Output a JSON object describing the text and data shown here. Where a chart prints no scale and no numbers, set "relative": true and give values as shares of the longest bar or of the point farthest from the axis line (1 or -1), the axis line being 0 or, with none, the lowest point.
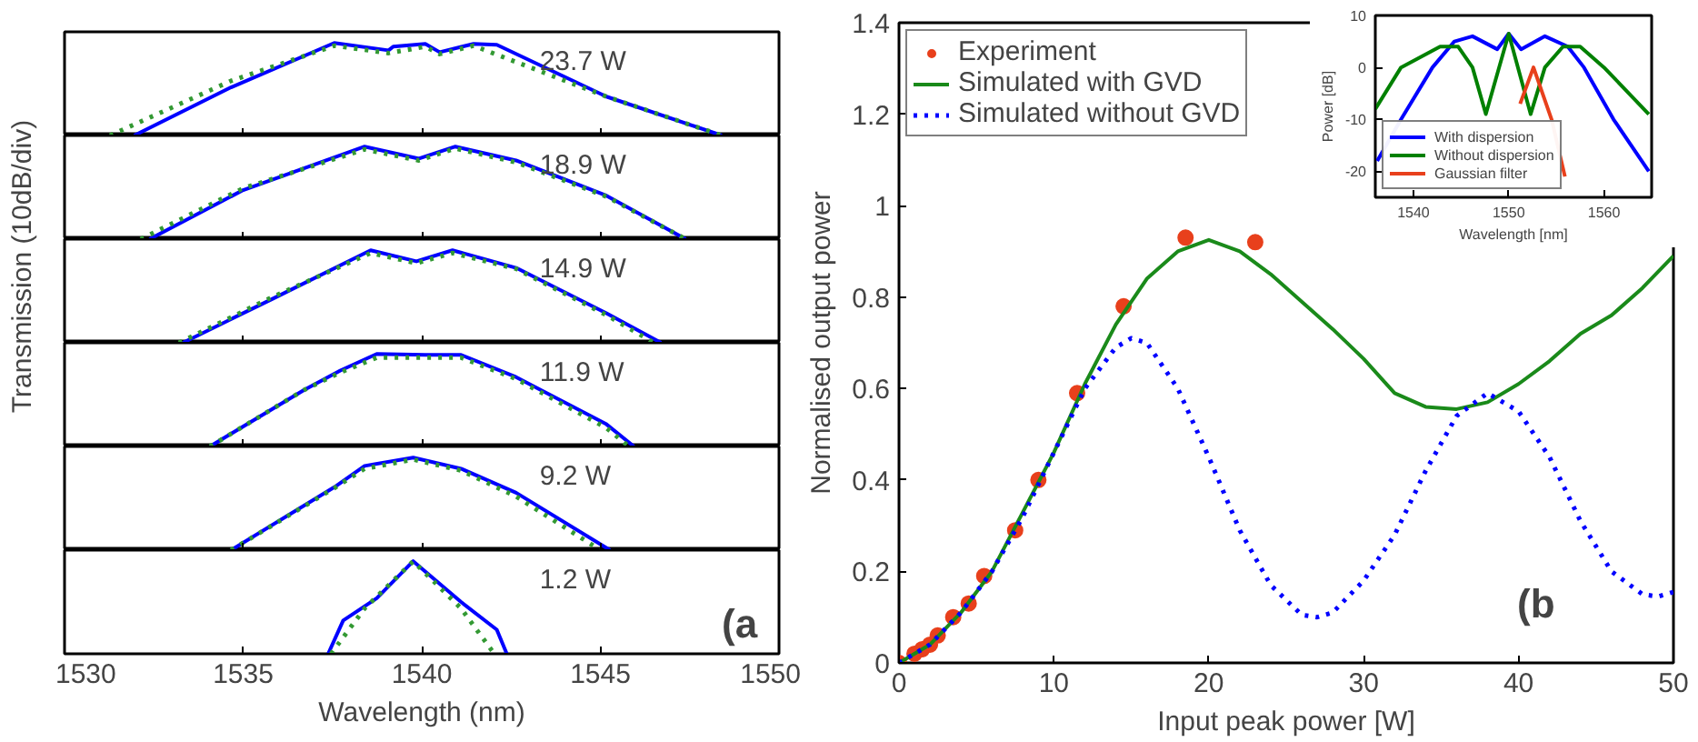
{
  "chart_data": [
    {
      "type": "line",
      "relative": true,
      "ylabel": "Transmission (10dB/div)",
      "xlim": [
        1530,
        1550
      ],
      "xticks": [
        1530,
        1535,
        1540,
        1545,
        1550
      ],
      "tick_labels": false,
      "annotations": [
        "23.7 W"
      ],
      "series": [
        {
          "color": "#0000ff",
          "line_style": "solid",
          "x": [
            1531.95,
            1534.66,
            1537.55,
            1539.07,
            1539.2,
            1540.1,
            1540.5,
            1541.45,
            1542.1,
            1545.17,
            1548.4
          ],
          "values": [
            0,
            0.52,
            1.0,
            0.92,
            0.96,
            0.99,
            0.9,
            0.99,
            0.98,
            0.42,
            0
          ]
        },
        {
          "color": "#339933",
          "line_style": "dotted",
          "x": [
            1531.27,
            1534.66,
            1537.55,
            1539.07,
            1540.1,
            1540.5,
            1541.45,
            1545.17,
            1548.4
          ],
          "values": [
            0,
            0.59,
            0.97,
            0.89,
            0.96,
            0.88,
            0.97,
            0.42,
            0
          ]
        }
      ]
    },
    {
      "type": "line",
      "relative": true,
      "xlim": [
        1530,
        1550
      ],
      "xticks": [
        1530,
        1535,
        1540,
        1545,
        1550
      ],
      "tick_labels": false,
      "annotations": [
        "18.9 W"
      ],
      "series": [
        {
          "color": "#0000ff",
          "line_style": "solid",
          "x": [
            1532.38,
            1535.0,
            1538.4,
            1539.92,
            1540.94,
            1542.64,
            1545.17,
            1547.39
          ],
          "values": [
            0,
            0.53,
            1.0,
            0.87,
            1.0,
            0.85,
            0.47,
            0
          ]
        },
        {
          "color": "#339933",
          "line_style": "dotted",
          "x": [
            1532.13,
            1535.0,
            1538.4,
            1539.92,
            1540.94,
            1542.64,
            1545.17,
            1547.39
          ],
          "values": [
            0,
            0.55,
            0.97,
            0.85,
            0.98,
            0.83,
            0.46,
            0
          ]
        }
      ]
    },
    {
      "type": "line",
      "relative": true,
      "xlim": [
        1530,
        1550
      ],
      "xticks": [
        1530,
        1535,
        1540,
        1545,
        1550
      ],
      "tick_labels": false,
      "annotations": [
        "14.9 W"
      ],
      "series": [
        {
          "color": "#0000ff",
          "line_style": "solid",
          "x": [
            1533.31,
            1535.85,
            1538.57,
            1539.85,
            1540.86,
            1542.64,
            1545.17,
            1546.7
          ],
          "values": [
            0,
            0.48,
            1.0,
            0.88,
            1.0,
            0.81,
            0.32,
            0
          ]
        },
        {
          "color": "#339933",
          "line_style": "dotted",
          "x": [
            1533.2,
            1535.85,
            1538.57,
            1539.85,
            1540.86,
            1542.64,
            1545.17,
            1546.5
          ],
          "values": [
            0,
            0.5,
            0.97,
            0.86,
            0.97,
            0.8,
            0.3,
            0
          ]
        }
      ]
    },
    {
      "type": "line",
      "relative": true,
      "xlim": [
        1530,
        1550
      ],
      "xticks": [
        1530,
        1535,
        1540,
        1545,
        1550
      ],
      "tick_labels": false,
      "annotations": [
        "11.9 W"
      ],
      "series": [
        {
          "color": "#0000ff",
          "line_style": "solid",
          "x": [
            1534.07,
            1536.7,
            1537.72,
            1538.74,
            1540.1,
            1541.1,
            1542.64,
            1545.17,
            1545.94
          ],
          "values": [
            0,
            0.61,
            0.82,
            1.0,
            0.99,
            0.99,
            0.75,
            0.24,
            0
          ]
        },
        {
          "color": "#339933",
          "line_style": "dotted",
          "x": [
            1534.07,
            1536.7,
            1537.72,
            1538.74,
            1540.1,
            1541.1,
            1542.64,
            1545.17,
            1545.8
          ],
          "values": [
            0,
            0.61,
            0.8,
            0.96,
            0.96,
            0.96,
            0.73,
            0.2,
            0
          ]
        }
      ]
    },
    {
      "type": "line",
      "relative": true,
      "xlim": [
        1530,
        1550
      ],
      "xticks": [
        1530,
        1535,
        1540,
        1545,
        1550
      ],
      "tick_labels": false,
      "annotations": [
        "9.2 W"
      ],
      "series": [
        {
          "color": "#0000ff",
          "line_style": "solid",
          "x": [
            1534.66,
            1537.55,
            1538.4,
            1539.76,
            1541.1,
            1542.64,
            1545.27
          ],
          "values": [
            0,
            0.68,
            0.91,
            1.0,
            0.88,
            0.62,
            0
          ]
        },
        {
          "color": "#339933",
          "line_style": "dotted",
          "x": [
            1534.66,
            1537.55,
            1538.4,
            1539.76,
            1541.1,
            1542.64,
            1545.0
          ],
          "values": [
            0,
            0.67,
            0.88,
            0.98,
            0.86,
            0.58,
            0
          ]
        }
      ]
    },
    {
      "type": "line",
      "relative": true,
      "xlim": [
        1530,
        1550
      ],
      "xticks": [
        1530,
        1535,
        1540,
        1545,
        1550
      ],
      "tick_labels": "x",
      "xlabel": "Wavelength (nm)",
      "annotations": [
        "1.2 W",
        "(a"
      ],
      "series": [
        {
          "color": "#0000ff",
          "line_style": "solid",
          "x": [
            1537.38,
            1537.8,
            1538.74,
            1539.76,
            1541.1,
            1542.1,
            1542.38
          ],
          "values": [
            0,
            0.36,
            0.6,
            1.0,
            0.56,
            0.26,
            0
          ]
        },
        {
          "color": "#339933",
          "line_style": "dotted",
          "x": [
            1537.46,
            1538.4,
            1539.76,
            1541.1,
            1542.03
          ],
          "values": [
            0,
            0.49,
            1.0,
            0.49,
            0
          ]
        }
      ]
    },
    {
      "type": "line",
      "xlabel": "Input peak power [W]",
      "ylabel": "Normalised output power",
      "xlim": [
        0,
        50
      ],
      "xticks": [
        0,
        10,
        20,
        30,
        40,
        50
      ],
      "ylim": [
        0,
        1.4
      ],
      "yticks": [
        0,
        0.2,
        0.4,
        0.6,
        0.8,
        1,
        1.2,
        1.4
      ],
      "legend": "top left",
      "annotations": [
        "(b"
      ],
      "series": [
        {
          "name": "Experiment",
          "type": "scatter",
          "marker": "circle",
          "color": "#e8401c",
          "x": [
            0,
            1,
            1.5,
            2,
            2.5,
            3.5,
            4.5,
            5.5,
            7.5,
            9,
            11.5,
            14.5,
            18.5,
            23
          ],
          "values": [
            0,
            0.02,
            0.03,
            0.04,
            0.06,
            0.1,
            0.13,
            0.19,
            0.29,
            0.4,
            0.59,
            0.78,
            0.93,
            0.92
          ]
        },
        {
          "name": "Simulated with GVD",
          "color": "#1a8a1a",
          "line_style": "solid",
          "x": [
            0,
            2,
            4,
            6,
            8,
            10,
            12,
            14,
            16,
            18,
            20,
            22,
            24,
            26,
            28,
            30,
            32,
            34,
            36,
            38,
            40,
            42,
            44,
            46,
            48,
            50
          ],
          "values": [
            0,
            0.04,
            0.11,
            0.2,
            0.33,
            0.46,
            0.61,
            0.74,
            0.84,
            0.9,
            0.925,
            0.9,
            0.85,
            0.79,
            0.73,
            0.665,
            0.59,
            0.56,
            0.555,
            0.57,
            0.61,
            0.66,
            0.72,
            0.76,
            0.82,
            0.89
          ]
        },
        {
          "name": "Simulated without GVD",
          "color": "#0000ff",
          "line_style": "dotted",
          "x": [
            0,
            2,
            4,
            6,
            8,
            10,
            12,
            14,
            15,
            16,
            18,
            20,
            22,
            24,
            26,
            27,
            28,
            30,
            32,
            34,
            36,
            38,
            40,
            42,
            44,
            46,
            48,
            49,
            50
          ],
          "values": [
            0,
            0.04,
            0.11,
            0.2,
            0.32,
            0.46,
            0.6,
            0.69,
            0.71,
            0.7,
            0.6,
            0.45,
            0.29,
            0.17,
            0.105,
            0.1,
            0.11,
            0.18,
            0.28,
            0.42,
            0.54,
            0.59,
            0.55,
            0.45,
            0.31,
            0.2,
            0.15,
            0.145,
            0.155
          ]
        }
      ]
    },
    {
      "type": "line",
      "xlabel": "Wavelength [nm]",
      "ylabel": "Power [dB]",
      "xlim": [
        1536,
        1565
      ],
      "xticks": [
        1540,
        1550,
        1560
      ],
      "ylim": [
        -25,
        10
      ],
      "yticks": [
        -20,
        -10,
        0,
        10
      ],
      "legend": "bottom left",
      "series": [
        {
          "name": "With dispersion",
          "color": "#0000ff",
          "line_style": "solid",
          "x": [
            1536.2,
            1538.7,
            1542,
            1544.3,
            1546.2,
            1548.8,
            1550,
            1551.3,
            1553.8,
            1556.2,
            1557.9,
            1561,
            1564.7
          ],
          "values": [
            -18,
            -10,
            0,
            5,
            6,
            3.5,
            6.5,
            3.5,
            6,
            4,
            0,
            -10,
            -20
          ]
        },
        {
          "name": "Without dispersion",
          "color": "#008000",
          "line_style": "solid",
          "x": [
            1536,
            1538.7,
            1542.8,
            1544.7,
            1546.2,
            1547.6,
            1550,
            1552.3,
            1553.8,
            1555.7,
            1557.5,
            1560,
            1564.7
          ],
          "values": [
            -8,
            0,
            4,
            4,
            0,
            -9,
            6.5,
            -9,
            0,
            4,
            4,
            0,
            -9
          ]
        },
        {
          "name": "Gaussian filter",
          "color": "#e8401c",
          "line_style": "solid",
          "x": [
            1551.2,
            1552.6,
            1554.5,
            1555.9
          ],
          "values": [
            -7,
            0,
            -10,
            -21
          ]
        }
      ]
    }
  ]
}
